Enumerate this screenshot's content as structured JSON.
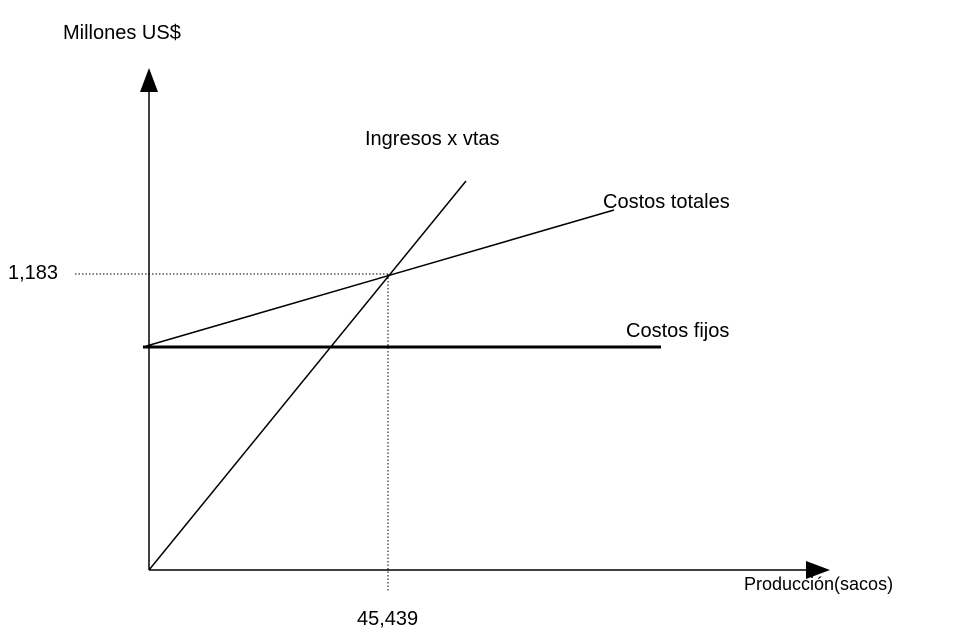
{
  "y_axis_label": "Millones US$",
  "x_axis_label": "Producción(sacos)",
  "lines": [
    {
      "label": "Ingresos x vtas"
    },
    {
      "label": "Costos totales"
    },
    {
      "label": "Costos fijos"
    }
  ],
  "break_even": {
    "y_label": "1,183",
    "x_label": "45,439"
  }
}
